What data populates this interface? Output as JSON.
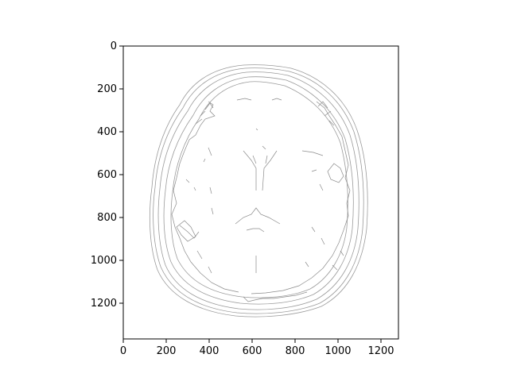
{
  "figure": {
    "image_description_name": "brain-mri-edge-map",
    "edge_color": "#9a9a9a",
    "background_color": "#ffffff",
    "axis_color": "#000000"
  },
  "axes": {
    "x_ticks": [
      "0",
      "200",
      "400",
      "600",
      "800",
      "1000",
      "1200"
    ],
    "y_ticks": [
      "0",
      "200",
      "400",
      "600",
      "800",
      "1000",
      "1200"
    ],
    "x_range": [
      0,
      1280
    ],
    "y_range": [
      1370,
      0
    ]
  }
}
